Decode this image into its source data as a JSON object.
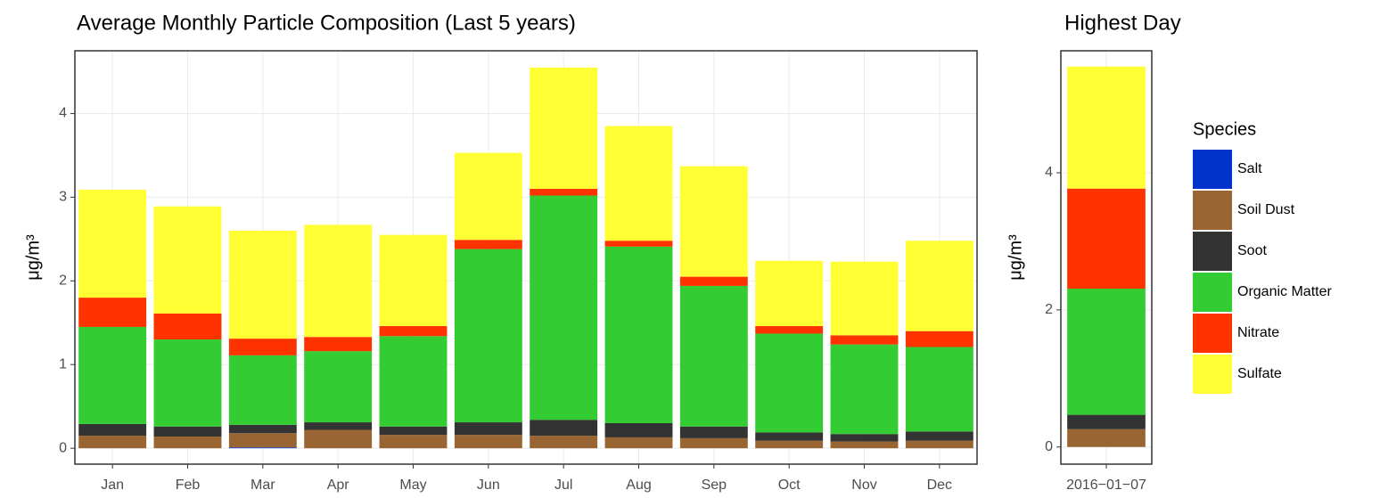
{
  "chart_data": [
    {
      "type": "stacked_bar",
      "title": "Average Monthly Particle Composition (Last 5 years)",
      "y_label": "μg/m³",
      "categories": [
        "Jan",
        "Feb",
        "Mar",
        "Apr",
        "May",
        "Jun",
        "Jul",
        "Aug",
        "Sep",
        "Oct",
        "Nov",
        "Dec"
      ],
      "series": [
        {
          "name": "Salt",
          "color": "#0033cc",
          "values": [
            0,
            0,
            0.01,
            0,
            0,
            0,
            0,
            0,
            0,
            0,
            0,
            0
          ]
        },
        {
          "name": "Soil Dust",
          "color": "#996633",
          "values": [
            0.15,
            0.14,
            0.17,
            0.22,
            0.16,
            0.16,
            0.15,
            0.13,
            0.12,
            0.09,
            0.08,
            0.09
          ]
        },
        {
          "name": "Soot",
          "color": "#333333",
          "values": [
            0.14,
            0.12,
            0.1,
            0.09,
            0.1,
            0.15,
            0.19,
            0.17,
            0.14,
            0.1,
            0.09,
            0.11
          ]
        },
        {
          "name": "Organic Matter",
          "color": "#33cc33",
          "values": [
            1.16,
            1.04,
            0.83,
            0.85,
            1.08,
            2.07,
            2.68,
            2.11,
            1.68,
            1.18,
            1.07,
            1.01
          ]
        },
        {
          "name": "Nitrate",
          "color": "#ff3300",
          "values": [
            0.35,
            0.31,
            0.2,
            0.17,
            0.12,
            0.11,
            0.08,
            0.07,
            0.11,
            0.09,
            0.11,
            0.19
          ]
        },
        {
          "name": "Sulfate",
          "color": "#ffff33",
          "values": [
            1.29,
            1.28,
            1.29,
            1.34,
            1.09,
            1.04,
            1.45,
            1.37,
            1.32,
            0.78,
            0.88,
            1.08
          ]
        }
      ],
      "ylim": [
        -0.19,
        4.75
      ],
      "yticks": [
        0,
        1,
        2,
        3,
        4
      ],
      "grid": true
    },
    {
      "type": "stacked_bar",
      "title": "Highest Day",
      "y_label": "μg/m³",
      "legend_title": "Species",
      "categories": [
        "2016−01−07"
      ],
      "series": [
        {
          "name": "Salt",
          "color": "#0033cc",
          "values": [
            0
          ]
        },
        {
          "name": "Soil Dust",
          "color": "#996633",
          "values": [
            0.26
          ]
        },
        {
          "name": "Soot",
          "color": "#333333",
          "values": [
            0.21
          ]
        },
        {
          "name": "Organic Matter",
          "color": "#33cc33",
          "values": [
            1.84
          ]
        },
        {
          "name": "Nitrate",
          "color": "#ff3300",
          "values": [
            1.46
          ]
        },
        {
          "name": "Sulfate",
          "color": "#ffff33",
          "values": [
            1.78
          ]
        }
      ],
      "ylim": [
        -0.25,
        5.78
      ],
      "yticks": [
        0,
        2,
        4
      ],
      "grid": true
    }
  ]
}
